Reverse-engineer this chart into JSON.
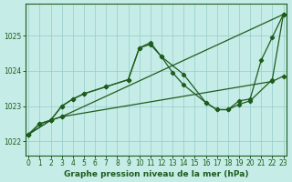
{
  "background_color": "#c5ece6",
  "grid_color": "#96cccc",
  "line_color": "#1e5c1e",
  "title": "Graphe pression niveau de la mer (hPa)",
  "xlim": [
    -0.3,
    23.3
  ],
  "ylim": [
    1021.6,
    1025.9
  ],
  "yticks": [
    1022,
    1023,
    1024,
    1025
  ],
  "xticks": [
    0,
    1,
    2,
    3,
    4,
    5,
    6,
    7,
    8,
    9,
    10,
    11,
    12,
    13,
    14,
    15,
    16,
    17,
    18,
    19,
    20,
    21,
    22,
    23
  ],
  "lines": [
    {
      "x": [
        0,
        2,
        3,
        23
      ],
      "y": [
        1022.2,
        1022.6,
        1022.7,
        1025.6
      ]
    },
    {
      "x": [
        0,
        2,
        3,
        22,
        23
      ],
      "y": [
        1022.2,
        1022.6,
        1022.7,
        1023.7,
        1023.85
      ]
    },
    {
      "x": [
        0,
        1,
        2,
        3,
        4,
        5,
        7,
        9,
        10,
        11,
        12,
        13,
        14,
        16,
        17,
        18,
        19,
        20,
        21,
        22,
        23
      ],
      "y": [
        1022.2,
        1022.5,
        1022.6,
        1023.0,
        1023.2,
        1023.35,
        1023.55,
        1023.75,
        1024.65,
        1024.75,
        1024.4,
        1023.95,
        1023.6,
        1023.1,
        1022.9,
        1022.9,
        1023.15,
        1023.2,
        1024.3,
        1024.95,
        1025.6
      ]
    },
    {
      "x": [
        0,
        1,
        2,
        3,
        4,
        5,
        7,
        9,
        10,
        11,
        12,
        14,
        16,
        17,
        18,
        19,
        20,
        22,
        23
      ],
      "y": [
        1022.2,
        1022.5,
        1022.6,
        1023.0,
        1023.2,
        1023.35,
        1023.55,
        1023.75,
        1024.65,
        1024.8,
        1024.4,
        1023.9,
        1023.1,
        1022.9,
        1022.9,
        1023.05,
        1023.15,
        1023.75,
        1025.6
      ]
    }
  ]
}
